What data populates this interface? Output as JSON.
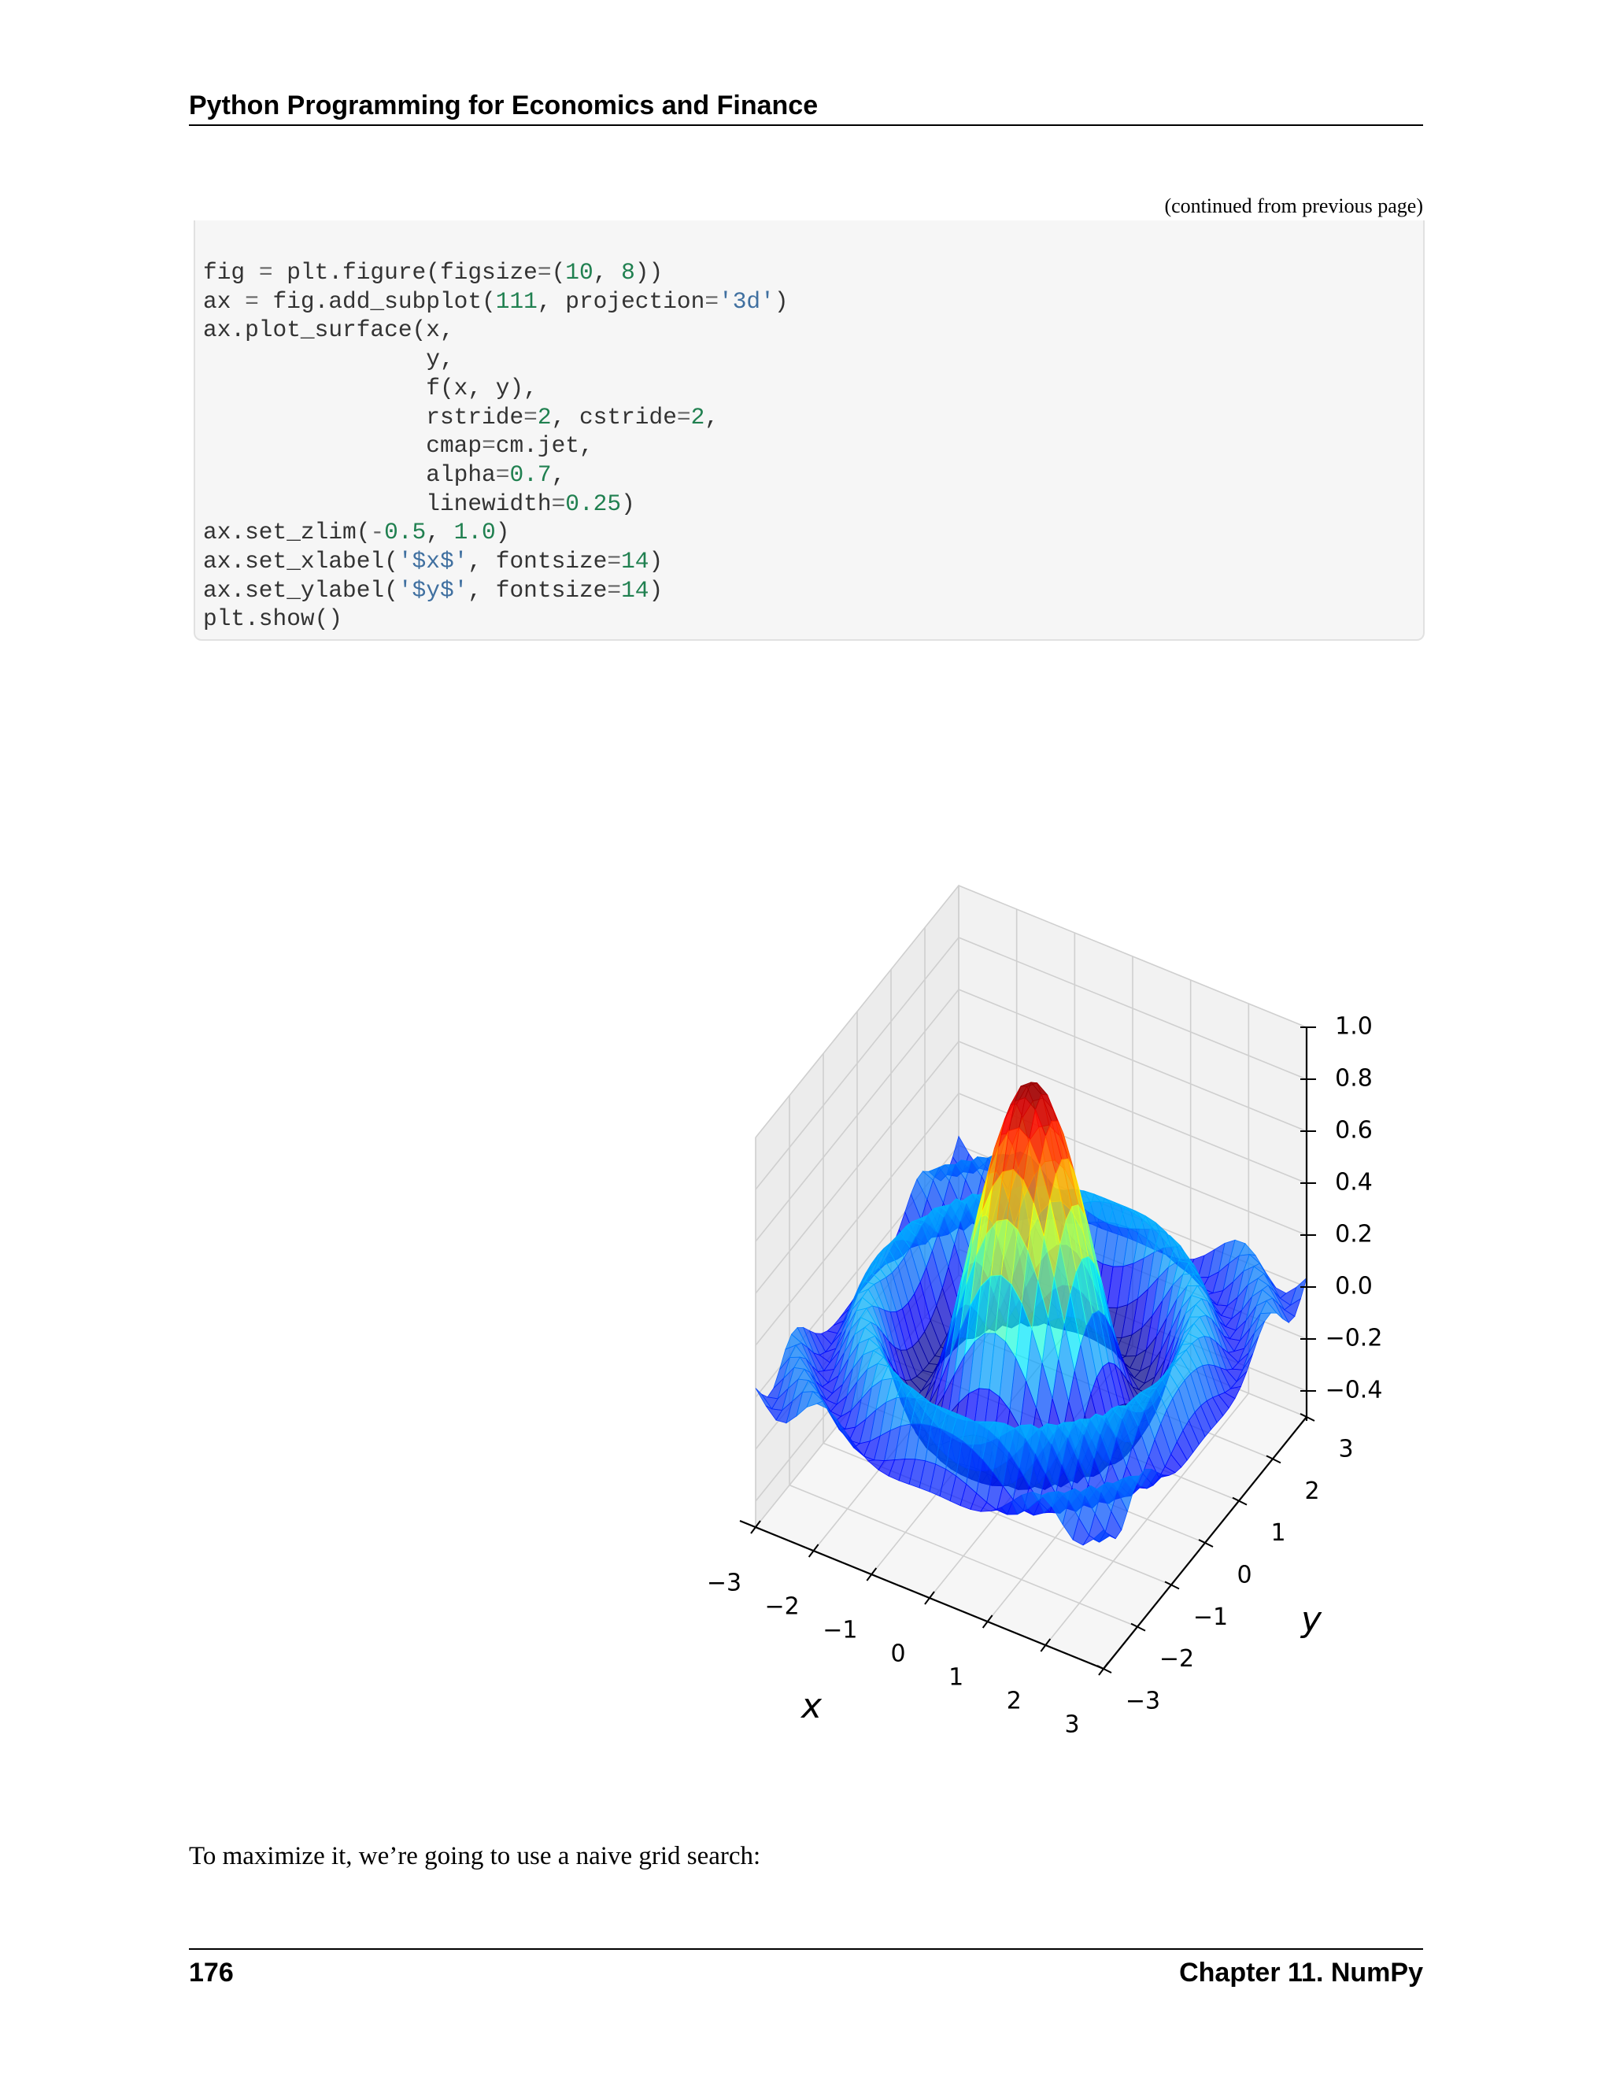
{
  "header": {
    "running_title": "Python Programming for Economics and Finance"
  },
  "code": {
    "continued_note": "(continued from previous page)",
    "lines": [
      [
        [
          "fig ",
          ""
        ],
        [
          "=",
          "op"
        ],
        [
          " plt.figure(figsize",
          ""
        ],
        [
          "=",
          "op"
        ],
        [
          "(",
          ""
        ],
        [
          "10",
          "num"
        ],
        [
          ", ",
          ""
        ],
        [
          "8",
          "num"
        ],
        [
          "))",
          ""
        ]
      ],
      [
        [
          "ax ",
          ""
        ],
        [
          "=",
          "op"
        ],
        [
          " fig.add_subplot(",
          ""
        ],
        [
          "111",
          "num"
        ],
        [
          ", projection",
          ""
        ],
        [
          "=",
          "op"
        ],
        [
          "'3d'",
          "str"
        ],
        [
          ")",
          ""
        ]
      ],
      [
        [
          "ax.plot_surface(x,",
          ""
        ]
      ],
      [
        [
          "                y,",
          ""
        ]
      ],
      [
        [
          "                f(x, y),",
          ""
        ]
      ],
      [
        [
          "                rstride",
          ""
        ],
        [
          "=",
          "op"
        ],
        [
          "2",
          "num"
        ],
        [
          ", cstride",
          ""
        ],
        [
          "=",
          "op"
        ],
        [
          "2",
          "num"
        ],
        [
          ",",
          ""
        ]
      ],
      [
        [
          "                cmap",
          ""
        ],
        [
          "=",
          "op"
        ],
        [
          "cm.jet,",
          ""
        ]
      ],
      [
        [
          "                alpha",
          ""
        ],
        [
          "=",
          "op"
        ],
        [
          "0.7",
          "num"
        ],
        [
          ",",
          ""
        ]
      ],
      [
        [
          "                linewidth",
          ""
        ],
        [
          "=",
          "op"
        ],
        [
          "0.25",
          "num"
        ],
        [
          ")",
          ""
        ]
      ],
      [
        [
          "ax.set_zlim(",
          ""
        ],
        [
          "-",
          "op"
        ],
        [
          "0.5",
          "num"
        ],
        [
          ", ",
          ""
        ],
        [
          "1.0",
          "num"
        ],
        [
          ")",
          ""
        ]
      ],
      [
        [
          "ax.set_xlabel(",
          ""
        ],
        [
          "'$x$'",
          "str"
        ],
        [
          ", fontsize",
          ""
        ],
        [
          "=",
          "op"
        ],
        [
          "14",
          "num"
        ],
        [
          ")",
          ""
        ]
      ],
      [
        [
          "ax.set_ylabel(",
          ""
        ],
        [
          "'$y$'",
          "str"
        ],
        [
          ", fontsize",
          ""
        ],
        [
          "=",
          "op"
        ],
        [
          "14",
          "num"
        ],
        [
          ")",
          ""
        ]
      ],
      [
        [
          "plt.show()",
          ""
        ]
      ]
    ]
  },
  "chart_data": {
    "type": "surface3d",
    "title": "",
    "xlabel": "x",
    "ylabel": "y",
    "zlabel": "",
    "xlim": [
      -3,
      3
    ],
    "ylim": [
      -3,
      3
    ],
    "zlim": [
      -0.5,
      1.0
    ],
    "x_ticks": [
      "−3",
      "−2",
      "−1",
      "0",
      "1",
      "2",
      "3"
    ],
    "y_ticks": [
      "−3",
      "−2",
      "−1",
      "0",
      "1",
      "2",
      "3"
    ],
    "z_ticks": [
      "−0.4",
      "−0.2",
      "0.0",
      "0.2",
      "0.4",
      "0.6",
      "0.8",
      "1.0"
    ],
    "x_tick_values": [
      -3,
      -2,
      -1,
      0,
      1,
      2,
      3
    ],
    "y_tick_values": [
      -3,
      -2,
      -1,
      0,
      1,
      2,
      3
    ],
    "z_tick_values": [
      -0.4,
      -0.2,
      0.0,
      0.2,
      0.4,
      0.6,
      0.8,
      1.0
    ],
    "peak": {
      "x": 0,
      "y": 0,
      "z": 1.0
    },
    "surface_samples": {
      "x": [
        -3,
        -2,
        -1,
        0,
        1,
        2,
        3
      ],
      "z_along_y0": [
        -0.05,
        0.05,
        0.35,
        1.0,
        0.35,
        0.05,
        -0.05
      ]
    },
    "colormap": "jet",
    "alpha": 0.7,
    "grid": true
  },
  "body": {
    "text": "To maximize it, we’re going to use a naive grid search:"
  },
  "footer": {
    "page_number": "176",
    "chapter": "Chapter 11.  NumPy"
  }
}
